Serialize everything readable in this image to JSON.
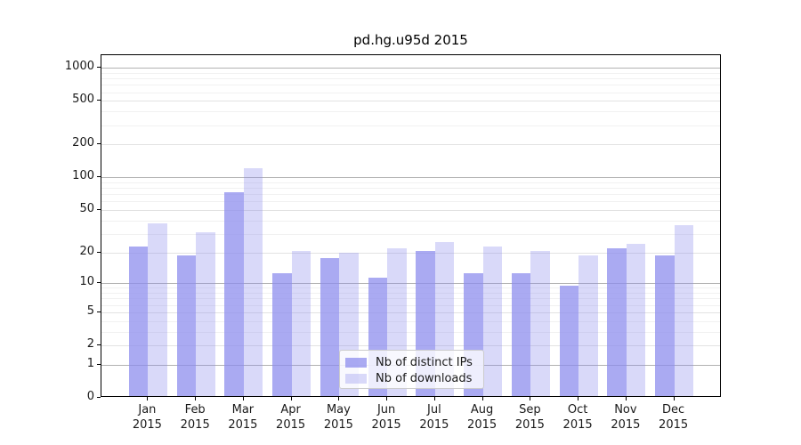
{
  "chart_data": {
    "type": "bar",
    "title": "pd.hg.u95d 2015",
    "categories": [
      "Jan 2015",
      "Feb 2015",
      "Mar 2015",
      "Apr 2015",
      "May 2015",
      "Jun 2015",
      "Jul 2015",
      "Aug 2015",
      "Sep 2015",
      "Oct 2015",
      "Nov 2015",
      "Dec 2015"
    ],
    "series": [
      {
        "name": "Nb of distinct IPs",
        "color": "rgba(140,140,238,0.74)",
        "color_blended": "#aaaaf2",
        "values": [
          22,
          18,
          70,
          12,
          17,
          11,
          20,
          12,
          12,
          9,
          21,
          18
        ]
      },
      {
        "name": "Nb of downloads",
        "color": "rgba(140,140,238,0.33)",
        "color_blended": "#d9d9f9",
        "values": [
          36,
          30,
          117,
          20,
          19,
          21,
          24,
          22,
          20,
          18,
          23,
          35
        ]
      }
    ],
    "xlabel": "",
    "ylabel": "",
    "y_axis": {
      "scale": "log10(v+1)",
      "tick_values": [
        0,
        1,
        2,
        5,
        10,
        20,
        50,
        100,
        200,
        500,
        1000
      ],
      "tick_labels": [
        "0",
        "1",
        "2",
        "5",
        "10",
        "20",
        "50",
        "100",
        "200",
        "500",
        "1000"
      ],
      "ylim": [
        0,
        1200
      ]
    },
    "grid": true,
    "legend_position": "lower-center",
    "colors": {
      "grid_major": "#b2b2b2",
      "grid_mid": "#e2e2e2",
      "grid_minor": "#f1f1f1",
      "axis": "#000000",
      "background": "#ffffff"
    }
  }
}
